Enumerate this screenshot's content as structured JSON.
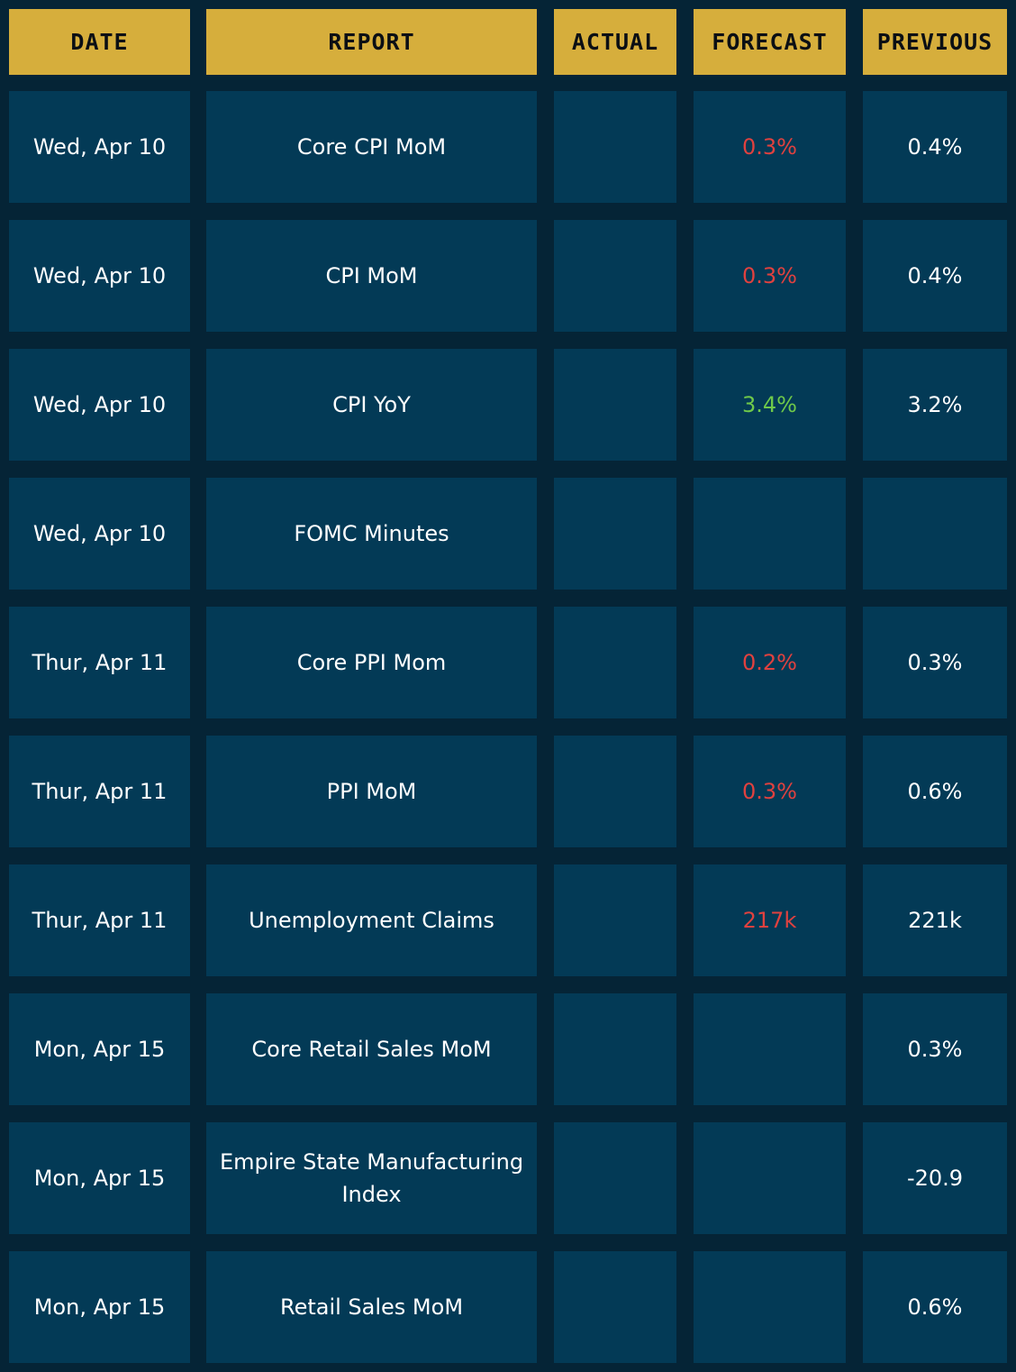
{
  "headers": {
    "date": "DATE",
    "report": "REPORT",
    "actual": "ACTUAL",
    "forecast": "FORECAST",
    "previous": "PREVIOUS"
  },
  "colors": {
    "header_bg": "#d6ae3c",
    "cell_bg": "#033a56",
    "page_bg": "#052436",
    "forecast_down": "#e0413f",
    "forecast_up": "#6fc94a",
    "text": "#ffffff"
  },
  "rows": [
    {
      "date": "Wed, Apr 10",
      "report": "Core CPI MoM",
      "actual": "",
      "forecast": "0.3%",
      "forecast_trend": "down",
      "previous": "0.4%"
    },
    {
      "date": "Wed, Apr 10",
      "report": "CPI MoM",
      "actual": "",
      "forecast": "0.3%",
      "forecast_trend": "down",
      "previous": "0.4%"
    },
    {
      "date": "Wed, Apr 10",
      "report": "CPI YoY",
      "actual": "",
      "forecast": "3.4%",
      "forecast_trend": "up",
      "previous": "3.2%"
    },
    {
      "date": "Wed, Apr 10",
      "report": "FOMC Minutes",
      "actual": "",
      "forecast": "",
      "forecast_trend": "",
      "previous": ""
    },
    {
      "date": "Thur, Apr 11",
      "report": "Core PPI Mom",
      "actual": "",
      "forecast": "0.2%",
      "forecast_trend": "down",
      "previous": "0.3%"
    },
    {
      "date": "Thur, Apr 11",
      "report": "PPI MoM",
      "actual": "",
      "forecast": "0.3%",
      "forecast_trend": "down",
      "previous": "0.6%"
    },
    {
      "date": "Thur, Apr 11",
      "report": "Unemployment Claims",
      "actual": "",
      "forecast": "217k",
      "forecast_trend": "down",
      "previous": "221k"
    },
    {
      "date": "Mon, Apr 15",
      "report": "Core Retail Sales MoM",
      "actual": "",
      "forecast": "",
      "forecast_trend": "",
      "previous": "0.3%"
    },
    {
      "date": "Mon, Apr 15",
      "report": "Empire State Manufacturing Index",
      "actual": "",
      "forecast": "",
      "forecast_trend": "",
      "previous": "-20.9"
    },
    {
      "date": "Mon, Apr 15",
      "report": "Retail Sales MoM",
      "actual": "",
      "forecast": "",
      "forecast_trend": "",
      "previous": "0.6%"
    }
  ]
}
